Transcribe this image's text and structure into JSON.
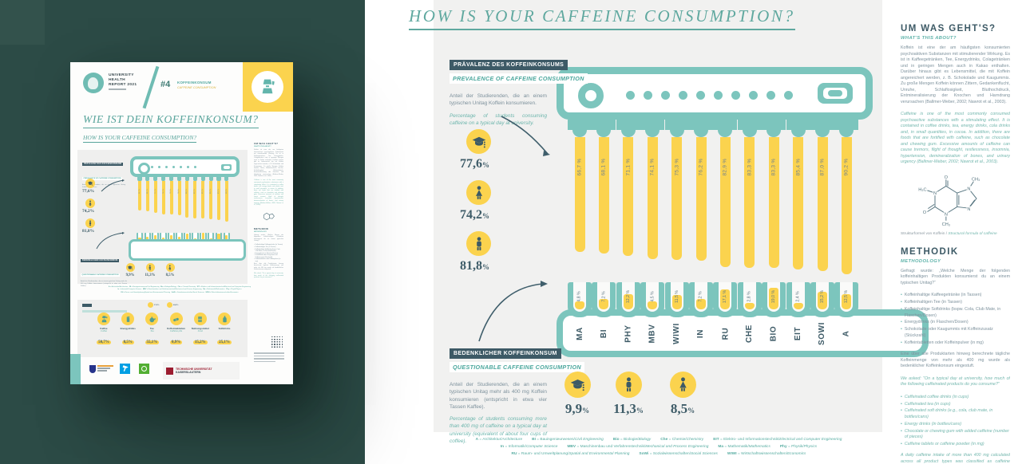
{
  "main": {
    "title": "HOW IS YOUR CAFFEINE CONSUMPTION?",
    "prevalence": {
      "badge_de": "PRÄVALENZ DES KOFFEINKONSUMS",
      "subtitle_en": "PREVALENCE OF CAFFEINE CONSUMPTION",
      "desc_de": "Anteil der Studierenden, die an einem typischen Unitag Koffein konsumieren.",
      "desc_en": "Percentage of students consuming caffeine on a typical day at university.",
      "stats": [
        {
          "icon": "students-icon",
          "value": "77,6",
          "pct": "%"
        },
        {
          "icon": "woman-icon",
          "value": "74,2",
          "pct": "%"
        },
        {
          "icon": "man-icon",
          "value": "81,8",
          "pct": "%"
        }
      ]
    },
    "questionable": {
      "badge_de": "BEDENKLICHER KOFFEINKONSUM",
      "subtitle_en": "QUESTIONABLE CAFFEINE CONSUMPTION",
      "desc_de": "Anteil der Studierenden, die an einem typischen Unitag mehr als 400 mg Koffein konsumieren (entspricht in etwa vier Tassen Kaffee).",
      "desc_en": "Percentage of students consuming more than 400 mg of caffeine on a typical day at university (equivalent of about four cups of coffee).",
      "stats": [
        {
          "icon": "students-icon",
          "value": "9,9",
          "pct": "%"
        },
        {
          "icon": "man-icon",
          "value": "11,3",
          "pct": "%"
        },
        {
          "icon": "woman-icon",
          "value": "8,5",
          "pct": "%"
        }
      ]
    }
  },
  "chart_data": {
    "type": "bar",
    "categories": [
      "MA",
      "BI",
      "PHY",
      "MBV",
      "WIWI",
      "IN",
      "RU",
      "CHE",
      "BIO",
      "EIT",
      "SOWI",
      "A"
    ],
    "series": [
      {
        "name": "PREVALENCE OF CAFFEINE CONSUMPTION",
        "unit": "%",
        "values": [
          66.7,
          68.1,
          71.1,
          74.1,
          75.3,
          76.2,
          82.9,
          83.3,
          83.3,
          85.4,
          87.0,
          90.2
        ],
        "labels": [
          "66,7 %",
          "68,1 %",
          "71,1 %",
          "74,1 %",
          "75,3 %",
          "76,2 %",
          "82,9 %",
          "83,3 %",
          "83,3 %",
          "85,4 %",
          "87,0 %",
          "90,2 %"
        ]
      },
      {
        "name": "QUESTIONABLE CAFFEINE CONSUMPTION",
        "unit": "%",
        "values": [
          4.8,
          7.2,
          12.2,
          4.5,
          11.5,
          7.2,
          17.1,
          2.8,
          19.0,
          2.4,
          15.2,
          12.5
        ],
        "labels": [
          "4,8 %",
          "7,2 %",
          "12,2 %",
          "4,5 %",
          "11,5 %",
          "7,2 %",
          "17,1 %",
          "2,8 %",
          "19,0 %",
          "2,4 %",
          "15,2 %",
          "12,5 %"
        ]
      }
    ],
    "overall_stats": {
      "prevalence": {
        "all": 77.6,
        "female": 74.2,
        "male": 81.8
      },
      "questionable": {
        "all": 9.9,
        "male": 11.3,
        "female": 8.5
      }
    },
    "grid": false,
    "legend_position": "bottom"
  },
  "sidebar": {
    "about_title": "UM WAS GEHT'S?",
    "about_subtitle": "WHAT'S THIS ABOUT?",
    "about_de": "Koffein ist eine der am häufigsten konsumierten psychoaktiven Substanzen mit stimulierender Wirkung. Es ist in Kaffeegetränken, Tee, Energydrinks, Colagetränken und in geringen Mengen auch in Kakao enthalten. Darüber hinaus gibt es Lebensmittel, die mit Koffein angereichert werden, z. B. Schokolade und Kaugummis. Zu große Mengen Koffein können Zittern, Gedankenflucht, Unruhe, Schlaflosigkeit, Bluthochdruck, Entmineralisierung der Knochen und Harndrang verursachen (Ballmer-Weber, 2002; Nawrot et al., 2003).",
    "about_en": "Caffeine is one of the most commonly consumed psychoactive substances with a stimulating effect. It is contained in coffee drinks, tea, energy drinks, cola drinks and, in small quantities, in cocoa. In addition, there are foods that are fortified with caffeine, such as chocolate and chewing gum. Excessive amounts of caffeine can cause tremors, flight of thought, restlessness, insomnia, hypertension, demineralization of bones, and urinary urgency (Ballmer-Weber, 2002; Nawrot et al., 2003).",
    "molecule_caption_de": "Strukturformel von Koffein / ",
    "molecule_caption_en": "Structural formula of caffeine",
    "molecule_atoms": [
      "N",
      "N",
      "N",
      "N",
      "O",
      "O",
      "H₃C",
      "CH₃",
      "CH₃"
    ],
    "methodik_title": "METHODIK",
    "methodik_subtitle": "METHODOLOGY",
    "methodik_intro_de": "Gefragt wurde: „Welche Menge der folgenden koffeinhaltigen Produkten konsumierst du an einem typischen Unitag?“",
    "methodik_bullets_de": [
      "Koffeinhaltige Kaffeegetränke (in Tassen)",
      "Koffeinhaltigen Tee (in Tassen)",
      "Koffeinhaltige Softdrinks (bspw. Cola, Club Mate, in Flaschen/Dosen)",
      "Energydrinks (in Flaschen/Dosen)",
      "Schokolade oder Kaugummis mit Koffeinzusatz (Stückzahl)",
      "Koffeintabletten oder Koffeinpulver (in mg)"
    ],
    "methodik_outro_de": "Eine über alle Produktarten hinweg berechnete tägliche Koffeinmenge von mehr als 400 mg wurde als bedenklicher Koffeinkonsum eingestuft.",
    "methodik_intro_en": "We asked: \"On a typical day at university, how much of the following caffeinated products do you consume?\"",
    "methodik_bullets_en": [
      "Caffeinated coffee drinks (in cups)",
      "Caffeinated tea (in cups)",
      "Caffeinated soft drinks (e.g., cola, club mate, in bottles/cans)",
      "Energy drinks (in bottles/cans)",
      "Chocolate or chewing gum with added caffeine (number of pieces)",
      "Caffeine tablets or caffeine powder (in mg)"
    ],
    "methodik_outro_en": "A daily caffeine intake of more than 400 mg calculated across all product types was classified as caffeine consumption of concern."
  },
  "legend": {
    "rows": [
      [
        {
          "abbr": "A",
          "de": "Architektur",
          "en": "Architecture"
        },
        {
          "abbr": "BI",
          "de": "Bauingenieurwesen",
          "en": "Civil Engineering"
        },
        {
          "abbr": "Bio",
          "de": "Biologie",
          "en": "Biology"
        },
        {
          "abbr": "Che",
          "de": "Chemie",
          "en": "Chemistry"
        },
        {
          "abbr": "EIT",
          "de": "Elektro- und Informationstechnik",
          "en": "Electrical and Computer Engineering"
        }
      ],
      [
        {
          "abbr": "In",
          "de": "Informatik",
          "en": "Computer Science"
        },
        {
          "abbr": "MBV",
          "de": "Maschinenbau und Verfahrenstechnik",
          "en": "Mechanical and Process Engineering"
        },
        {
          "abbr": "Ma",
          "de": "Mathematik",
          "en": "Mathematics"
        },
        {
          "abbr": "Phy",
          "de": "Physik",
          "en": "Physics"
        }
      ],
      [
        {
          "abbr": "RU",
          "de": "Raum- und Umweltplanung",
          "en": "Spatial and Environmental Planning"
        },
        {
          "abbr": "SoWi",
          "de": "Sozialwissenschaften",
          "en": "Social Sciences"
        },
        {
          "abbr": "WIWI",
          "de": "Wirtschaftswissenschaften",
          "en": "Economics"
        }
      ]
    ]
  },
  "thumb": {
    "org": [
      "UNIVERSITY",
      "HEALTH",
      "REPORT 2021"
    ],
    "issue": "#4",
    "topic_de": "KOFFEINKONSUM",
    "topic_en": "CAFFEINE CONSUMPTION",
    "title_de": "WIE IST DEIN KOFFEINKONSUM?",
    "title_en": "HOW IS YOUR CAFFEINE CONSUMPTION?",
    "products": [
      {
        "icon": "moka-pot-icon",
        "label_de": "Kaffee",
        "label_en": "Coffee",
        "value": "50,7%"
      },
      {
        "icon": "energy-can-icon",
        "label_de": "Energydrinks",
        "label_en": "",
        "value": "8,5%"
      },
      {
        "icon": "teapot-icon",
        "label_de": "Tee",
        "label_en": "Tea",
        "value": "55,1%"
      },
      {
        "icon": "pill-icon",
        "label_de": "Koffeintabletten",
        "label_en": "Caffeine pills",
        "value": "0,9%"
      },
      {
        "icon": "chocolate-icon",
        "label_de": "Nahrungsmittel",
        "label_en": "Food",
        "value": "15,2%"
      },
      {
        "icon": "bottle-icon",
        "label_de": "Softdrinks",
        "label_en": "",
        "value": "25,1%"
      }
    ],
    "tea_bubbles": [
      "27,6%",
      "40,6%"
    ],
    "tu_line1": "TECHNISCHE UNIVERSITÄT",
    "tu_line2": "KAISERSLAUTERN"
  },
  "colors": {
    "teal": "#7cc5bd",
    "yellow": "#fbd34e",
    "slate": "#3d5a66",
    "dark_background": "#2c4b46",
    "panel_gray": "#f1f1f0",
    "teal_text": "#5fa89f"
  }
}
